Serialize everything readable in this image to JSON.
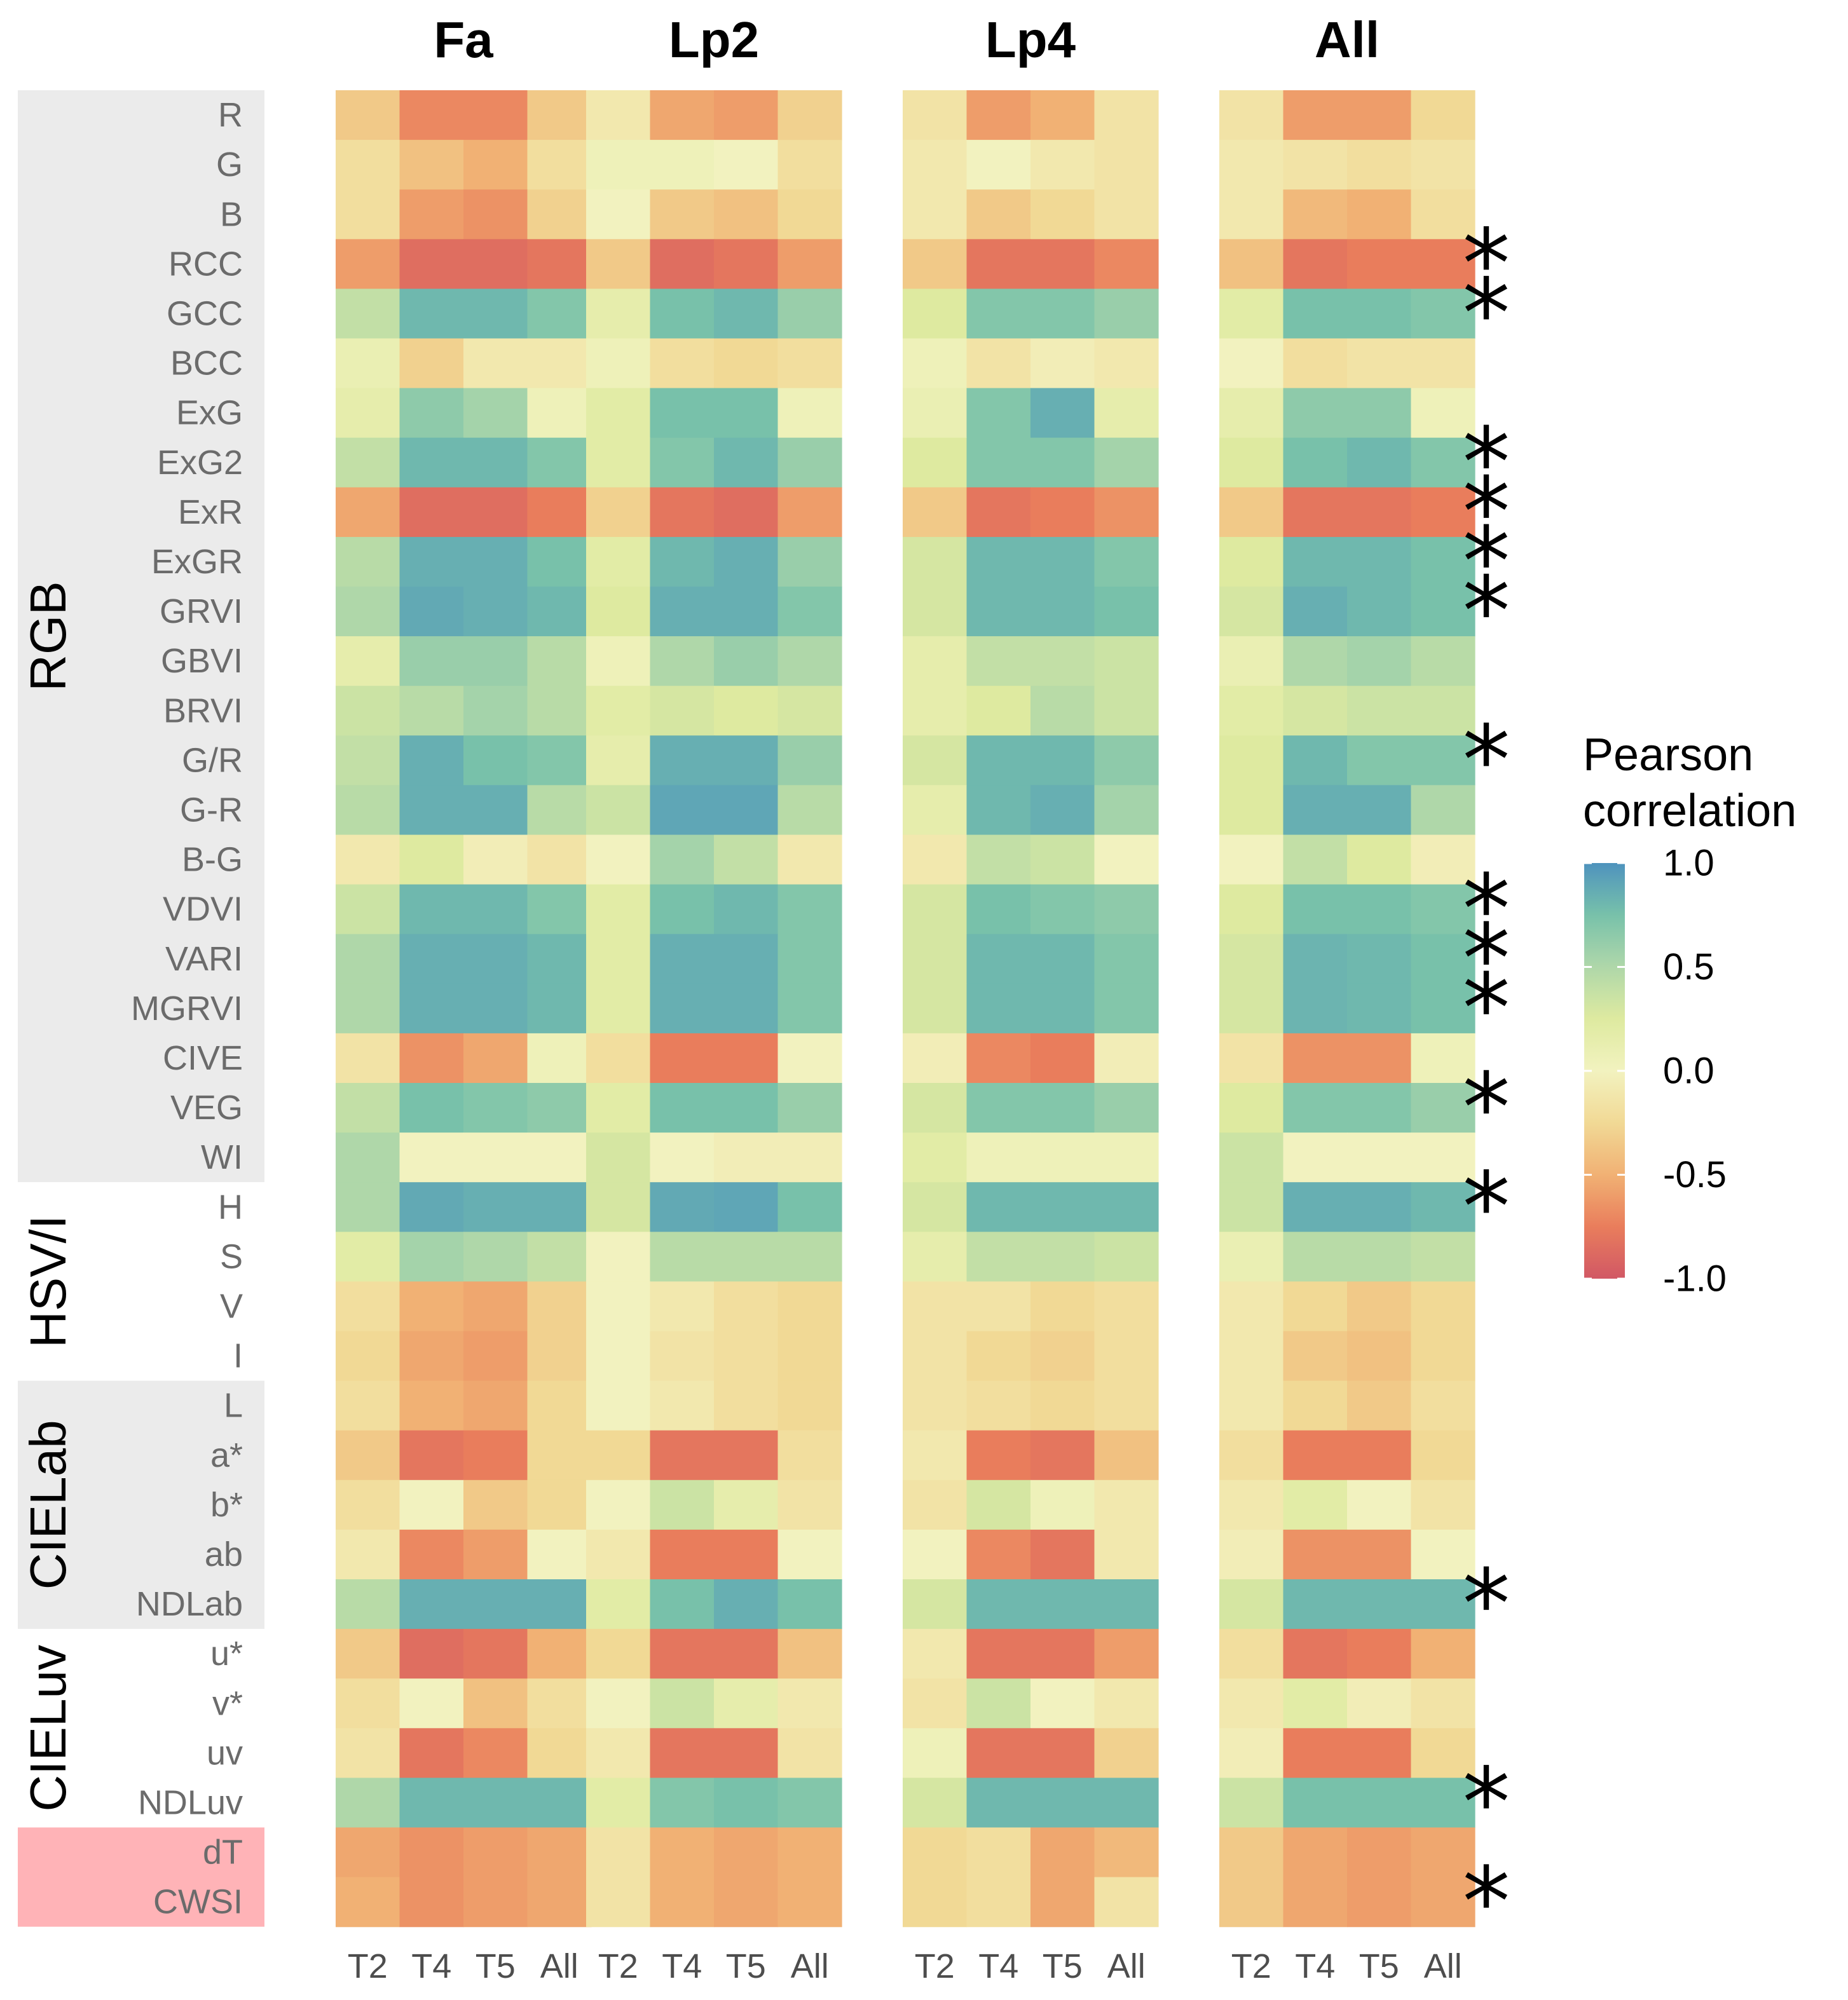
{
  "chart_data": {
    "type": "heatmap",
    "panels": [
      "Fa",
      "Lp2",
      "Lp4",
      "All"
    ],
    "columns": [
      "T2",
      "T4",
      "T5",
      "All"
    ],
    "rows": [
      "R",
      "G",
      "B",
      "RCC",
      "GCC",
      "BCC",
      "ExG",
      "ExG2",
      "ExR",
      "ExGR",
      "GRVI",
      "GBVI",
      "BRVI",
      "G/R",
      "G-R",
      "B-G",
      "VDVI",
      "VARI",
      "MGRVI",
      "CIVE",
      "VEG",
      "WI",
      "H",
      "S",
      "V",
      "I",
      "L",
      "a*",
      "b*",
      "ab",
      "NDLab",
      "u*",
      "v*",
      "uv",
      "NDLuv",
      "dT",
      "CWSI"
    ],
    "groups": [
      {
        "name": "RGB",
        "from": "R",
        "to": "WI",
        "shade": "#ebebeb"
      },
      {
        "name": "HSV/I",
        "from": "H",
        "to": "I",
        "shade": "#ffffff"
      },
      {
        "name": "CIELab",
        "from": "L",
        "to": "NDLab",
        "shade": "#ebebeb"
      },
      {
        "name": "CIELuv",
        "from": "u*",
        "to": "NDLuv",
        "shade": "#ffffff"
      },
      {
        "name": "",
        "from": "dT",
        "to": "CWSI",
        "shade": "#ffb3b7"
      }
    ],
    "values": {
      "Fa": [
        [
          -0.35,
          -0.7,
          -0.7,
          -0.35
        ],
        [
          -0.2,
          -0.4,
          -0.5,
          -0.2
        ],
        [
          -0.2,
          -0.6,
          -0.65,
          -0.3
        ],
        [
          -0.6,
          -0.85,
          -0.85,
          -0.8
        ],
        [
          0.4,
          0.8,
          0.8,
          0.7
        ],
        [
          0.1,
          -0.3,
          -0.1,
          -0.1
        ],
        [
          0.15,
          0.65,
          0.55,
          0.05
        ],
        [
          0.4,
          0.8,
          0.8,
          0.7
        ],
        [
          -0.55,
          -0.85,
          -0.85,
          -0.75
        ],
        [
          0.45,
          0.85,
          0.85,
          0.75
        ],
        [
          0.5,
          0.88,
          0.85,
          0.8
        ],
        [
          0.15,
          0.6,
          0.6,
          0.45
        ],
        [
          0.35,
          0.45,
          0.55,
          0.45
        ],
        [
          0.4,
          0.85,
          0.75,
          0.7
        ],
        [
          0.45,
          0.85,
          0.85,
          0.45
        ],
        [
          -0.1,
          0.25,
          -0.05,
          -0.15
        ],
        [
          0.35,
          0.8,
          0.8,
          0.7
        ],
        [
          0.5,
          0.85,
          0.85,
          0.8
        ],
        [
          0.5,
          0.85,
          0.85,
          0.8
        ],
        [
          -0.15,
          -0.65,
          -0.55,
          0.05
        ],
        [
          0.4,
          0.75,
          0.7,
          0.65
        ],
        [
          0.5,
          0.0,
          0.0,
          0.0
        ],
        [
          0.5,
          0.88,
          0.85,
          0.85
        ],
        [
          0.2,
          0.55,
          0.5,
          0.4
        ],
        [
          -0.2,
          -0.5,
          -0.55,
          -0.3
        ],
        [
          -0.25,
          -0.55,
          -0.6,
          -0.3
        ],
        [
          -0.2,
          -0.5,
          -0.55,
          -0.25
        ],
        [
          -0.35,
          -0.8,
          -0.75,
          -0.25
        ],
        [
          -0.2,
          0.0,
          -0.35,
          -0.25
        ],
        [
          -0.1,
          -0.7,
          -0.6,
          0.0
        ],
        [
          0.45,
          0.85,
          0.85,
          0.85
        ],
        [
          -0.35,
          -0.85,
          -0.8,
          -0.5
        ],
        [
          -0.2,
          0.0,
          -0.4,
          -0.2
        ],
        [
          -0.15,
          -0.8,
          -0.7,
          -0.25
        ],
        [
          0.5,
          0.8,
          0.8,
          0.8
        ],
        [
          -0.55,
          -0.65,
          -0.6,
          -0.55
        ],
        [
          -0.5,
          -0.65,
          -0.6,
          -0.55
        ]
      ],
      "Lp2": [
        [
          -0.1,
          -0.55,
          -0.6,
          -0.3
        ],
        [
          0.05,
          0.05,
          0.0,
          -0.2
        ],
        [
          0.0,
          -0.35,
          -0.4,
          -0.25
        ],
        [
          -0.35,
          -0.85,
          -0.8,
          -0.6
        ],
        [
          0.15,
          0.75,
          0.8,
          0.6
        ],
        [
          0.05,
          -0.2,
          -0.25,
          -0.2
        ],
        [
          0.2,
          0.75,
          0.75,
          0.05
        ],
        [
          0.2,
          0.7,
          0.8,
          0.6
        ],
        [
          -0.3,
          -0.8,
          -0.85,
          -0.6
        ],
        [
          0.2,
          0.8,
          0.85,
          0.6
        ],
        [
          0.25,
          0.85,
          0.85,
          0.7
        ],
        [
          0.05,
          0.5,
          0.6,
          0.5
        ],
        [
          0.2,
          0.3,
          0.25,
          0.3
        ],
        [
          0.15,
          0.85,
          0.85,
          0.6
        ],
        [
          0.35,
          0.9,
          0.9,
          0.45
        ],
        [
          0.0,
          0.55,
          0.4,
          -0.1
        ],
        [
          0.2,
          0.75,
          0.8,
          0.7
        ],
        [
          0.2,
          0.85,
          0.85,
          0.7
        ],
        [
          0.2,
          0.85,
          0.85,
          0.7
        ],
        [
          -0.2,
          -0.75,
          -0.75,
          0.0
        ],
        [
          0.2,
          0.75,
          0.75,
          0.6
        ],
        [
          0.3,
          0.0,
          -0.05,
          -0.05
        ],
        [
          0.3,
          0.88,
          0.9,
          0.75
        ],
        [
          0.0,
          0.45,
          0.45,
          0.45
        ],
        [
          0.0,
          -0.1,
          -0.2,
          -0.25
        ],
        [
          0.0,
          -0.15,
          -0.2,
          -0.25
        ],
        [
          0.0,
          -0.1,
          -0.2,
          -0.25
        ],
        [
          -0.25,
          -0.8,
          -0.8,
          -0.2
        ],
        [
          0.0,
          0.35,
          0.15,
          -0.15
        ],
        [
          -0.1,
          -0.75,
          -0.75,
          0.0
        ],
        [
          0.2,
          0.75,
          0.85,
          0.75
        ],
        [
          -0.25,
          -0.8,
          -0.8,
          -0.4
        ],
        [
          0.0,
          0.35,
          0.15,
          -0.1
        ],
        [
          -0.1,
          -0.8,
          -0.8,
          -0.15
        ],
        [
          0.2,
          0.7,
          0.75,
          0.7
        ],
        [
          -0.15,
          -0.5,
          -0.55,
          -0.5
        ],
        [
          -0.15,
          -0.5,
          -0.55,
          -0.5
        ]
      ],
      "Lp4": [
        [
          -0.15,
          -0.6,
          -0.5,
          -0.15
        ],
        [
          -0.1,
          0.0,
          -0.1,
          -0.15
        ],
        [
          -0.1,
          -0.35,
          -0.25,
          -0.15
        ],
        [
          -0.35,
          -0.8,
          -0.8,
          -0.7
        ],
        [
          0.25,
          0.7,
          0.7,
          0.6
        ],
        [
          0.05,
          -0.15,
          -0.05,
          -0.1
        ],
        [
          0.1,
          0.7,
          0.85,
          0.15
        ],
        [
          0.25,
          0.7,
          0.7,
          0.55
        ],
        [
          -0.35,
          -0.8,
          -0.75,
          -0.65
        ],
        [
          0.3,
          0.8,
          0.8,
          0.7
        ],
        [
          0.3,
          0.8,
          0.8,
          0.75
        ],
        [
          0.15,
          0.4,
          0.4,
          0.35
        ],
        [
          0.15,
          0.25,
          0.45,
          0.35
        ],
        [
          0.3,
          0.8,
          0.8,
          0.65
        ],
        [
          0.15,
          0.8,
          0.85,
          0.55
        ],
        [
          -0.1,
          0.4,
          0.35,
          0.0
        ],
        [
          0.3,
          0.75,
          0.7,
          0.65
        ],
        [
          0.3,
          0.8,
          0.8,
          0.7
        ],
        [
          0.3,
          0.8,
          0.8,
          0.7
        ],
        [
          -0.05,
          -0.7,
          -0.75,
          -0.05
        ],
        [
          0.3,
          0.7,
          0.7,
          0.6
        ],
        [
          0.2,
          0.05,
          0.05,
          0.05
        ],
        [
          0.3,
          0.8,
          0.8,
          0.8
        ],
        [
          0.15,
          0.4,
          0.4,
          0.35
        ],
        [
          -0.15,
          -0.15,
          -0.25,
          -0.2
        ],
        [
          -0.15,
          -0.25,
          -0.3,
          -0.2
        ],
        [
          -0.15,
          -0.2,
          -0.25,
          -0.2
        ],
        [
          -0.1,
          -0.75,
          -0.8,
          -0.4
        ],
        [
          -0.15,
          0.3,
          0.05,
          -0.1
        ],
        [
          0.0,
          -0.7,
          -0.8,
          -0.1
        ],
        [
          0.3,
          0.8,
          0.8,
          0.8
        ],
        [
          -0.1,
          -0.8,
          -0.8,
          -0.6
        ],
        [
          -0.15,
          0.35,
          0.0,
          -0.1
        ],
        [
          0.05,
          -0.8,
          -0.8,
          -0.3
        ],
        [
          0.3,
          0.8,
          0.8,
          0.8
        ],
        [
          -0.25,
          -0.2,
          -0.55,
          -0.45
        ],
        [
          -0.25,
          -0.2,
          -0.55,
          -0.15
        ]
      ],
      "All": [
        [
          -0.15,
          -0.6,
          -0.6,
          -0.25
        ],
        [
          -0.1,
          -0.15,
          -0.2,
          -0.15
        ],
        [
          -0.1,
          -0.45,
          -0.5,
          -0.2
        ],
        [
          -0.4,
          -0.8,
          -0.75,
          -0.75
        ],
        [
          0.2,
          0.75,
          0.75,
          0.7
        ],
        [
          0.0,
          -0.2,
          -0.15,
          -0.15
        ],
        [
          0.15,
          0.65,
          0.65,
          0.05
        ],
        [
          0.25,
          0.75,
          0.8,
          0.7
        ],
        [
          -0.35,
          -0.8,
          -0.8,
          -0.75
        ],
        [
          0.25,
          0.8,
          0.8,
          0.75
        ],
        [
          0.3,
          0.85,
          0.8,
          0.75
        ],
        [
          0.1,
          0.5,
          0.55,
          0.45
        ],
        [
          0.2,
          0.3,
          0.35,
          0.35
        ],
        [
          0.25,
          0.8,
          0.7,
          0.7
        ],
        [
          0.25,
          0.85,
          0.85,
          0.5
        ],
        [
          0.0,
          0.4,
          0.25,
          -0.05
        ],
        [
          0.25,
          0.75,
          0.75,
          0.7
        ],
        [
          0.3,
          0.82,
          0.8,
          0.75
        ],
        [
          0.3,
          0.82,
          0.8,
          0.75
        ],
        [
          -0.15,
          -0.65,
          -0.65,
          0.05
        ],
        [
          0.25,
          0.7,
          0.7,
          0.6
        ],
        [
          0.35,
          0.0,
          0.0,
          0.0
        ],
        [
          0.35,
          0.85,
          0.85,
          0.8
        ],
        [
          0.1,
          0.45,
          0.45,
          0.4
        ],
        [
          -0.1,
          -0.25,
          -0.35,
          -0.25
        ],
        [
          -0.1,
          -0.35,
          -0.4,
          -0.25
        ],
        [
          -0.1,
          -0.25,
          -0.35,
          -0.2
        ],
        [
          -0.2,
          -0.75,
          -0.75,
          -0.25
        ],
        [
          -0.1,
          0.2,
          0.0,
          -0.15
        ],
        [
          -0.05,
          -0.65,
          -0.65,
          0.0
        ],
        [
          0.3,
          0.8,
          0.8,
          0.8
        ],
        [
          -0.2,
          -0.8,
          -0.75,
          -0.5
        ],
        [
          -0.1,
          0.2,
          -0.05,
          -0.15
        ],
        [
          -0.05,
          -0.75,
          -0.75,
          -0.25
        ],
        [
          0.35,
          0.75,
          0.75,
          0.75
        ],
        [
          -0.35,
          -0.55,
          -0.6,
          -0.55
        ],
        [
          -0.35,
          -0.55,
          -0.6,
          -0.55
        ]
      ]
    },
    "significant_rows": [
      "RCC",
      "GCC",
      "ExG2",
      "ExR",
      "ExGR",
      "GRVI",
      "G/R",
      "VDVI",
      "VARI",
      "MGRVI",
      "VEG",
      "H",
      "NDLab",
      "NDLuv",
      "CWSI"
    ],
    "significance_marker": "*",
    "legend": {
      "title_line1": "Pearson",
      "title_line2": "correlation",
      "ticks": [
        1.0,
        0.5,
        0.0,
        -0.5,
        -1.0
      ],
      "tick_labels": [
        "1.0",
        "0.5",
        "0.0",
        "-0.5",
        "-1.0"
      ],
      "range": [
        -1.0,
        1.0
      ],
      "placement": "right",
      "palette": "Spectral"
    },
    "colors": {
      "palette_stops": [
        "#d53e4f",
        "#f46d43",
        "#fdae61",
        "#fee08b",
        "#ffffbf",
        "#e6f598",
        "#abdda4",
        "#66c2a5",
        "#3288bd"
      ],
      "heatmap_blend": "#bfbfbf",
      "heatmap_blend_weight": 0.2
    }
  }
}
